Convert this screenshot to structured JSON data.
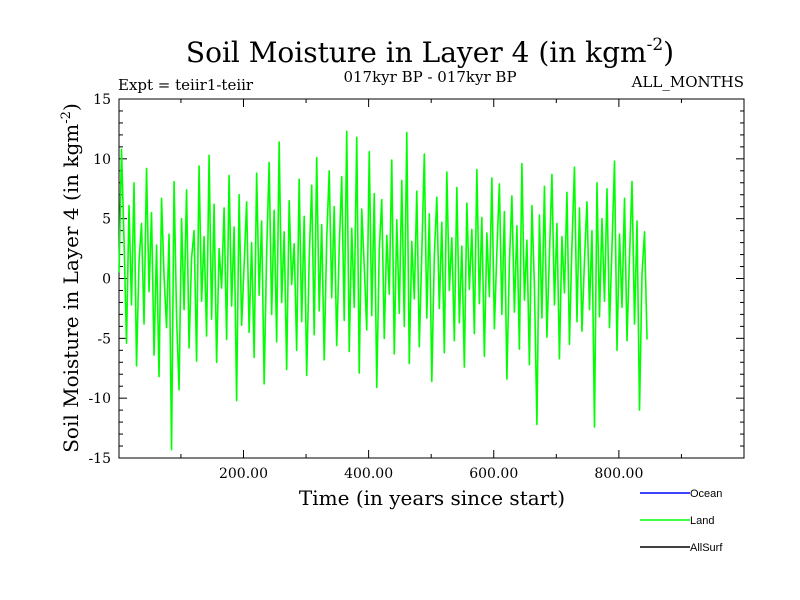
{
  "header": {
    "title": "Soil Moisture in Layer 4 (in kgm",
    "title_sup": "-2",
    "title_close": ")",
    "subtitle_left": "Expt = teiir1-teiir",
    "subtitle_center": "017kyr BP - 017kyr BP",
    "subtitle_right": "ALL_MONTHS"
  },
  "chart_data": {
    "type": "line",
    "xlabel": "Time (in years since start)",
    "ylabel": "Soil Moisture in Layer 4 (in kgm",
    "ylabel_sup": "-2",
    "ylabel_close": ")",
    "xlim": [
      1,
      1000
    ],
    "ylim": [
      -15,
      15
    ],
    "x_ticks": [
      200,
      400,
      600,
      800
    ],
    "x_tick_labels": [
      "200.00",
      "400.00",
      "600.00",
      "800.00"
    ],
    "y_ticks": [
      -15,
      -10,
      -5,
      0,
      5,
      10,
      15
    ],
    "y_tick_labels": [
      "-15",
      "-10",
      "-5",
      "0",
      "5",
      "10",
      "15"
    ],
    "legend_position": "bottom-right",
    "series": [
      {
        "name": "Ocean",
        "color": "#0000ff",
        "values": []
      },
      {
        "name": "Land",
        "color": "#00ff00",
        "x_start": 1,
        "x_step": 4,
        "values": [
          0.5,
          10.8,
          3.2,
          -5.4,
          6.1,
          -2.2,
          8.0,
          -7.3,
          1.4,
          4.6,
          -3.8,
          9.2,
          -1.1,
          5.5,
          -6.4,
          2.8,
          -8.2,
          6.7,
          0.2,
          -4.1,
          3.7,
          -14.3,
          8.1,
          -3.2,
          -9.3,
          5.0,
          -2.6,
          7.4,
          -5.8,
          1.7,
          4.0,
          -6.9,
          9.4,
          -1.9,
          3.5,
          -4.8,
          10.3,
          -3.4,
          6.2,
          -7.0,
          2.5,
          -0.8,
          5.9,
          -5.1,
          8.6,
          -2.3,
          4.3,
          -10.2,
          7.0,
          -3.9,
          1.1,
          6.4,
          -4.5,
          3.0,
          -6.6,
          8.8,
          -1.4,
          4.8,
          -8.8,
          2.2,
          9.7,
          -3.0,
          5.7,
          -5.3,
          11.4,
          -2.0,
          3.9,
          -7.6,
          6.5,
          -0.5,
          2.9,
          -6.0,
          8.3,
          -3.6,
          5.2,
          -8.1,
          1.6,
          7.8,
          -4.7,
          10.1,
          -2.7,
          4.5,
          -6.8,
          3.3,
          9.0,
          -1.6,
          6.0,
          -5.6,
          2.6,
          8.5,
          -3.5,
          12.3,
          -6.1,
          4.2,
          -2.4,
          11.8,
          -7.9,
          5.8,
          1.0,
          -4.3,
          10.6,
          -3.1,
          7.1,
          -9.1,
          2.4,
          6.6,
          -5.0,
          3.6,
          -1.3,
          9.9,
          -6.3,
          4.9,
          -2.9,
          8.2,
          -4.0,
          12.2,
          -7.1,
          3.1,
          -1.7,
          7.3,
          -5.7,
          2.1,
          10.4,
          -3.3,
          5.4,
          -8.6,
          1.9,
          6.8,
          -2.5,
          4.7,
          -6.2,
          8.9,
          -1.0,
          3.4,
          -5.2,
          7.6,
          -3.7,
          2.7,
          -7.4,
          6.3,
          -0.9,
          4.1,
          -4.6,
          9.1,
          -2.1,
          5.1,
          -6.5,
          3.8,
          -1.5,
          8.4,
          -4.2,
          2.3,
          7.9,
          -3.0,
          5.6,
          -8.4,
          1.3,
          6.9,
          -2.8,
          4.4,
          -5.9,
          9.6,
          -1.8,
          3.2,
          -7.2,
          6.1,
          -0.6,
          -12.2,
          5.3,
          -3.3,
          7.7,
          -4.9,
          2.0,
          8.7,
          -2.2,
          4.6,
          -6.7,
          3.5,
          -1.2,
          7.2,
          -5.5,
          2.8,
          9.3,
          -3.6,
          5.9,
          -4.4,
          1.5,
          6.4,
          -2.6,
          4.0,
          -12.4,
          8.0,
          -3.2,
          5.0,
          -1.9,
          7.5,
          -4.1,
          2.6,
          9.8,
          -6.0,
          3.7,
          -2.4,
          6.7,
          -5.2,
          1.8,
          8.1,
          -3.8,
          4.8,
          -11.0,
          0.4,
          3.9,
          -5.1
        ]
      },
      {
        "name": "AllSurf",
        "color": "#000000",
        "values": []
      }
    ]
  }
}
